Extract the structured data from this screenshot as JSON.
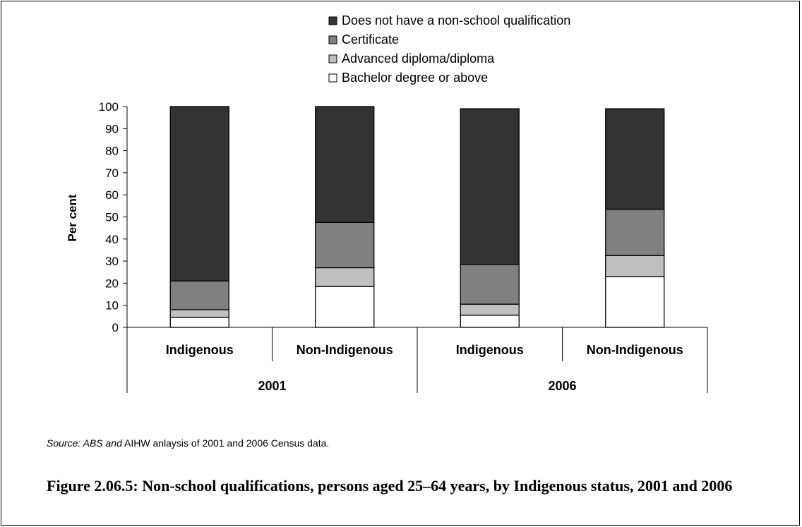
{
  "chart_data": {
    "type": "bar",
    "stacked": true,
    "ylabel": "Per cent",
    "ylim": [
      0,
      100
    ],
    "yticks": [
      0,
      10,
      20,
      30,
      40,
      50,
      60,
      70,
      80,
      90,
      100
    ],
    "categories": [
      "Indigenous",
      "Non-Indigenous",
      "Indigenous",
      "Non-Indigenous"
    ],
    "groups": [
      {
        "label": "2001",
        "span": [
          0,
          1
        ]
      },
      {
        "label": "2006",
        "span": [
          2,
          3
        ]
      }
    ],
    "legend_position": "top",
    "series": [
      {
        "name": "Bachelor degree or above",
        "color": "#ffffff",
        "values": [
          4.5,
          18.5,
          5.5,
          23
        ]
      },
      {
        "name": "Advanced diploma/diploma",
        "color": "#c0c0c0",
        "values": [
          3.5,
          8.5,
          5,
          9.5
        ]
      },
      {
        "name": "Certificate",
        "color": "#808080",
        "values": [
          13,
          20.5,
          18,
          21
        ]
      },
      {
        "name": "Does not have a non-school qualification",
        "color": "#333333",
        "values": [
          79,
          52.5,
          70.5,
          45.5
        ]
      }
    ]
  },
  "source": {
    "prefix": "Source: ABS and",
    "rest": " AIHW anlaysis of 2001 and 2006 Census data."
  },
  "caption": "Figure 2.06.5: Non-school qualifications, persons aged 25–64 years, by Indigenous status, 2001 and 2006"
}
